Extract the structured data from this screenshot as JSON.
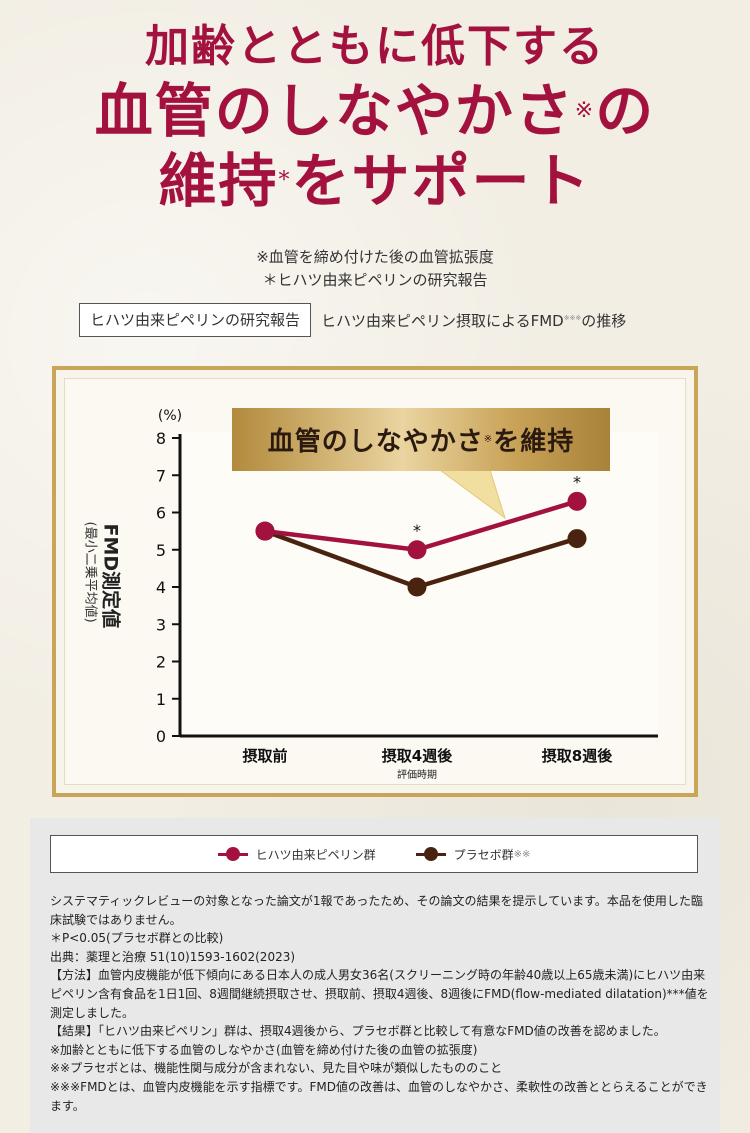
{
  "hero": {
    "line1": "加齢とともに低下する",
    "line2": "血管のしなやかさ",
    "line2_mark": "※",
    "line2_tail": "の",
    "line3a": "維持",
    "line3_mark": "*",
    "line3b": "をサポート"
  },
  "notes": {
    "n1": "※血管を締め付けた後の血管拡張度",
    "n2": "＊ヒハツ由来ピペリンの研究報告"
  },
  "subhead": {
    "box": "ヒハツ由来ピペリンの研究報告",
    "text": "ヒハツ由来ピペリン摂取によるFMD",
    "text_mark": "※※※",
    "text_tail": "の推移"
  },
  "banner": {
    "text": "血管のしなやかさ",
    "mark": "※",
    "tail": "を維持"
  },
  "colors": {
    "crimson": "#a3123f",
    "brown": "#4a2310",
    "gold": "#c9a558"
  },
  "chart_data": {
    "type": "line",
    "categories": [
      "摂取前",
      "摂取4週後",
      "摂取8週後"
    ],
    "xlabel": "評価時期",
    "ylabel": "FMD測定値",
    "ylabel_sub": "(最小二乗平均値)",
    "yunit": "(%)",
    "ylim": [
      0,
      8
    ],
    "yticks": [
      "0",
      "1",
      "2",
      "3",
      "4",
      "5",
      "6",
      "7",
      "8"
    ],
    "series": [
      {
        "name": "ヒハツ由来ピペリン群",
        "values": [
          5.5,
          5.0,
          6.3
        ],
        "color": "#a3123f",
        "significance": [
          "",
          "*",
          "*"
        ]
      },
      {
        "name": "プラセボ群※※",
        "values": [
          5.5,
          4.0,
          5.3
        ],
        "color": "#4a2310"
      }
    ]
  },
  "legend": {
    "s1": "ヒハツ由来ピペリン群",
    "s2": "プラセボ群",
    "s2_mark": "※※"
  },
  "fine": [
    "システマティックレビューの対象となった論文が1報であったため、その論文の結果を提示しています。本品を使用した臨床試験ではありません。",
    "＊P<0.05(プラセボ群との比較)",
    "出典：薬理と治療 51(10)1593-1602(2023)",
    "【方法】血管内皮機能が低下傾向にある日本人の成人男女36名(スクリーニング時の年齢40歳以上65歳未満)にヒハツ由来ピペリン含有食品を1日1回、8週間継続摂取させ、摂取前、摂取4週後、8週後にFMD(flow-mediated dilatation)***値を測定しました。",
    "【結果】「ヒハツ由来ピペリン」群は、摂取4週後から、プラセボ群と比較して有意なFMD値の改善を認めました。",
    "※加齢とともに低下する血管のしなやかさ(血管を締め付けた後の血管の拡張度)",
    "※※プラセボとは、機能性関与成分が含まれない、見た目や味が類似したもののこと",
    "※※※FMDとは、血管内皮機能を示す指標です。FMD値の改善は、血管のしなやかさ、柔軟性の改善ととらえることができます。"
  ]
}
